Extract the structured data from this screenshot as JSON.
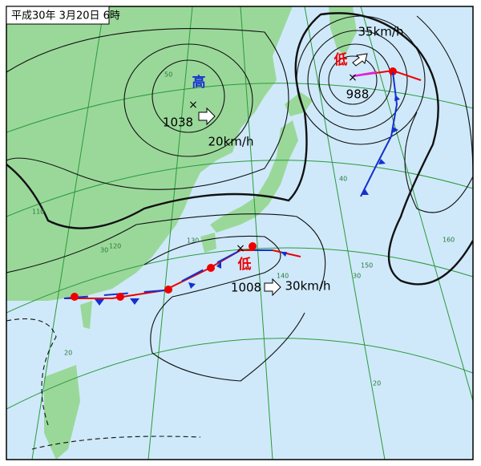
{
  "header": {
    "title": "平成30年 3月20日 6時"
  },
  "systems": [
    {
      "label": "高",
      "pressure": "1038",
      "speed": "20km/h"
    },
    {
      "label": "低",
      "pressure": "988",
      "speed": "35km/h"
    },
    {
      "label": "低",
      "pressure": "1008",
      "speed": "30km/h"
    }
  ],
  "grid_labels": [
    "50",
    "40",
    "30",
    "30",
    "20",
    "20",
    "110",
    "120",
    "130",
    "140",
    "150",
    "160"
  ]
}
